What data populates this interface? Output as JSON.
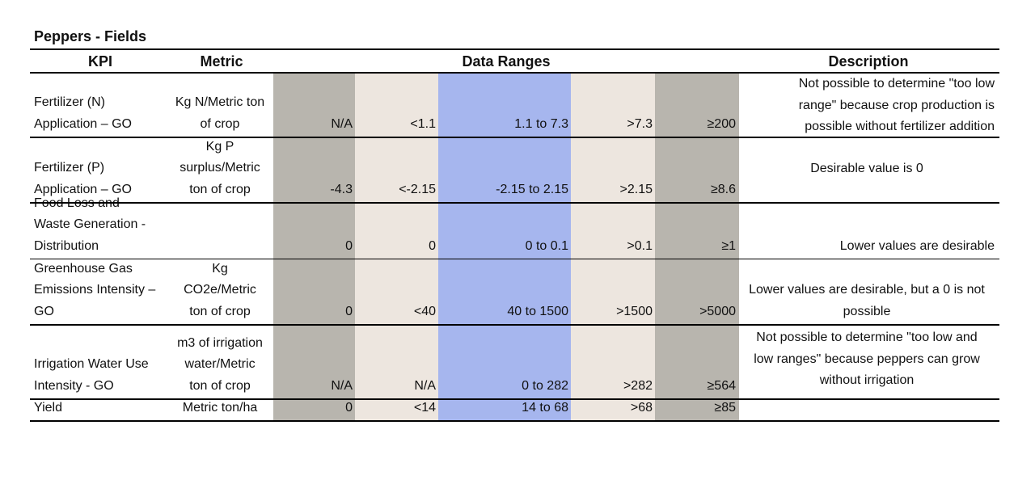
{
  "title": "Peppers - Fields",
  "headers": {
    "kpi": "KPI",
    "metric": "Metric",
    "data_ranges": "Data Ranges",
    "description": "Description"
  },
  "rows": [
    {
      "kpi": [
        "Fertilizer (N)",
        "Application – GO"
      ],
      "metric": [
        "Kg N/Metric ton",
        "of crop"
      ],
      "ranges": [
        "N/A",
        "<1.1",
        "1.1 to 7.3",
        ">7.3",
        "≥200"
      ],
      "description": [
        "Not possible to determine \"too low",
        "range\" because crop production is",
        "possible without fertilizer addition"
      ]
    },
    {
      "kpi": [
        "Fertilizer (P)",
        "Application – GO"
      ],
      "metric": [
        "Kg P",
        "surplus/Metric",
        "ton of crop"
      ],
      "ranges": [
        "-4.3",
        "<-2.15",
        "-2.15 to 2.15",
        ">2.15",
        "≥8.6"
      ],
      "description": [
        "Desirable value is 0"
      ]
    },
    {
      "kpi": [
        "Food Loss and",
        "Waste Generation -",
        "Distribution"
      ],
      "metric": [],
      "ranges": [
        "0",
        "0",
        "0 to 0.1",
        ">0.1",
        "≥1"
      ],
      "description": [
        "Lower values are desirable"
      ]
    },
    {
      "kpi": [
        "Greenhouse Gas",
        "Emissions Intensity –",
        "GO"
      ],
      "metric": [
        "Kg",
        "CO2e/Metric",
        "ton of crop"
      ],
      "ranges": [
        "0",
        "<40",
        "40 to 1500",
        ">1500",
        ">5000"
      ],
      "description": [
        "Lower values are desirable, but a 0 is not",
        "possible"
      ]
    },
    {
      "kpi": [
        "Irrigation Water Use",
        "Intensity - GO"
      ],
      "metric": [
        "m3 of irrigation",
        "water/Metric",
        "ton of crop"
      ],
      "ranges": [
        "N/A",
        "N/A",
        "0 to 282",
        ">282",
        "≥564"
      ],
      "description": [
        "Not possible to determine \"too low and",
        "low ranges\" because peppers can grow",
        "without irrigation"
      ]
    },
    {
      "kpi": [
        "Yield"
      ],
      "metric": [
        "Metric ton/ha"
      ],
      "ranges": [
        "0",
        "<14",
        "14  to 68",
        ">68",
        "≥85"
      ],
      "description": []
    }
  ]
}
